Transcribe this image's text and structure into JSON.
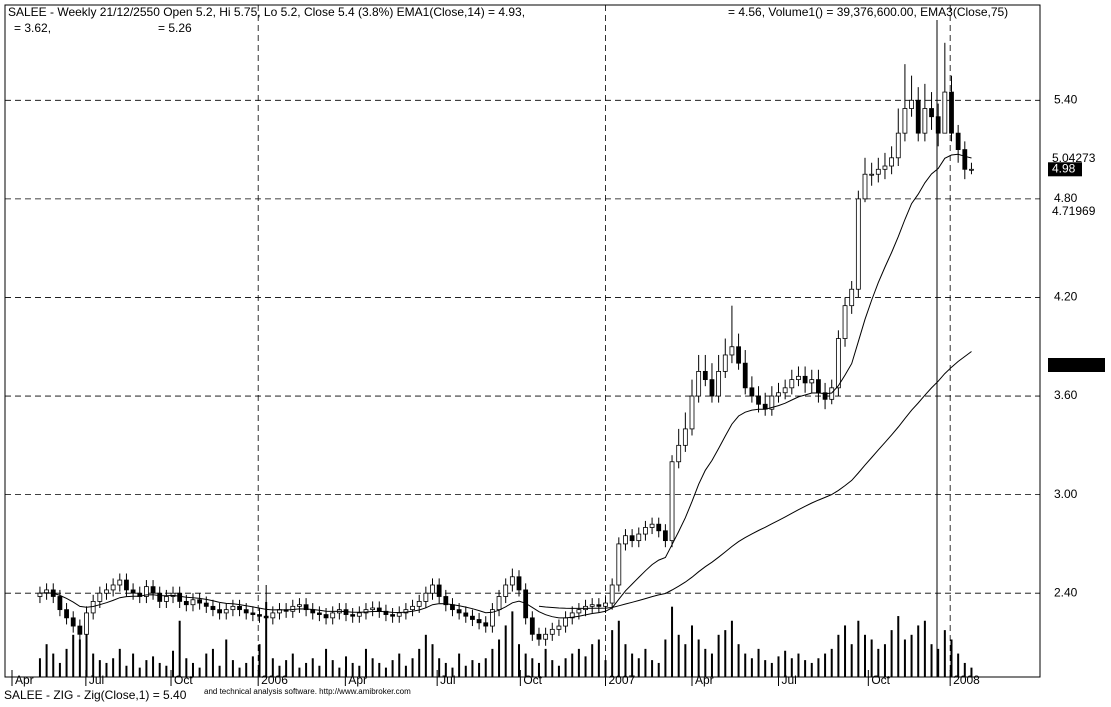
{
  "chart_data": {
    "type": "candlestick",
    "title": "SALEE - Weekly 21/12/2550 Open 5.2, Hi 5.75, Lo 5.2, Close 5.4 (3.8%) EMA1(Close,14) = 4.93,",
    "title_right": "= 4.56, Volume1() = 39,376,600.00, EMA3(Close,75)",
    "subtitle_left": "= 3.62,",
    "subtitle_mid": "= 5.26",
    "footer": "SALEE - ZIG - Zig(Close,1) = 5.40",
    "footer_small": "and technical analysis software. http://www.amibroker.com",
    "ema_periods": [
      14,
      75
    ],
    "ylim": [
      1.89,
      5.98
    ],
    "yticks": [
      {
        "value": 5.4,
        "label": "5.40"
      },
      {
        "value": 4.8,
        "label": "4.80"
      },
      {
        "value": 4.2,
        "label": "4.20"
      },
      {
        "value": 3.6,
        "label": "3.60"
      },
      {
        "value": 3.0,
        "label": "3.00"
      },
      {
        "value": 2.4,
        "label": "2.40"
      }
    ],
    "price_markers": [
      {
        "value": 5.04273,
        "label": "5.04273"
      },
      {
        "value": 4.98,
        "label": "4.98"
      },
      {
        "value": 4.71969,
        "label": "4.71969"
      }
    ],
    "xlim": [
      -4.2,
      149.4
    ],
    "xticks": [
      {
        "value": -4.2,
        "label": "Apr"
      },
      {
        "value": 6.9,
        "label": "Jul"
      },
      {
        "value": 19.7,
        "label": "Oct"
      },
      {
        "value": 32.8,
        "label": "2006"
      },
      {
        "value": 45.9,
        "label": "Apr"
      },
      {
        "value": 59.7,
        "label": "Jul"
      },
      {
        "value": 72.2,
        "label": "Oct"
      },
      {
        "value": 85,
        "label": "2007"
      },
      {
        "value": 98,
        "label": "Apr"
      },
      {
        "value": 111,
        "label": "Jul"
      },
      {
        "value": 124.5,
        "label": "Oct"
      },
      {
        "value": 136.8,
        "label": "2008"
      }
    ],
    "grid": true,
    "open": [
      2.38,
      2.4,
      2.42,
      2.38,
      2.3,
      2.25,
      2.2,
      2.15,
      2.28,
      2.35,
      2.4,
      2.42,
      2.45,
      2.48,
      2.42,
      2.4,
      2.38,
      2.44,
      2.4,
      2.35,
      2.38,
      2.4,
      2.35,
      2.33,
      2.36,
      2.34,
      2.32,
      2.3,
      2.28,
      2.3,
      2.32,
      2.3,
      2.28,
      2.27,
      2.26,
      2.25,
      2.28,
      2.3,
      2.29,
      2.32,
      2.33,
      2.3,
      2.28,
      2.27,
      2.25,
      2.28,
      2.3,
      2.27,
      2.26,
      2.28,
      2.3,
      2.31,
      2.29,
      2.27,
      2.26,
      2.28,
      2.3,
      2.32,
      2.35,
      2.4,
      2.45,
      2.38,
      2.33,
      2.3,
      2.28,
      2.26,
      2.24,
      2.22,
      2.2,
      2.3,
      2.38,
      2.45,
      2.5,
      2.42,
      2.25,
      2.15,
      2.12,
      2.15,
      2.18,
      2.2,
      2.25,
      2.28,
      2.3,
      2.32,
      2.33,
      2.32,
      2.34,
      2.45,
      2.7,
      2.75,
      2.72,
      2.76,
      2.8,
      2.82,
      2.78,
      2.72,
      3.2,
      3.3,
      3.4,
      3.6,
      3.75,
      3.7,
      3.6,
      3.75,
      3.85,
      3.9,
      3.8,
      3.65,
      3.6,
      3.55,
      3.52,
      3.6,
      3.62,
      3.65,
      3.7,
      3.72,
      3.68,
      3.7,
      3.62,
      3.58,
      3.65,
      3.95,
      4.15,
      4.25,
      4.8,
      4.95,
      4.95,
      4.98,
      5.0,
      5.05,
      5.2,
      5.35,
      5.4,
      5.2,
      5.35,
      5.3,
      5.2,
      5.45,
      5.2,
      5.1,
      4.98
    ],
    "high": [
      2.44,
      2.46,
      2.46,
      2.42,
      2.34,
      2.29,
      2.24,
      2.32,
      2.39,
      2.44,
      2.46,
      2.49,
      2.52,
      2.52,
      2.46,
      2.44,
      2.48,
      2.48,
      2.44,
      2.42,
      2.44,
      2.44,
      2.39,
      2.4,
      2.4,
      2.38,
      2.36,
      2.34,
      2.34,
      2.36,
      2.36,
      2.34,
      2.32,
      2.31,
      2.45,
      2.32,
      2.34,
      2.34,
      2.36,
      2.37,
      2.37,
      2.34,
      2.32,
      2.31,
      2.32,
      2.34,
      2.34,
      2.31,
      2.32,
      2.34,
      2.35,
      2.35,
      2.33,
      2.31,
      2.32,
      2.34,
      2.36,
      2.39,
      2.44,
      2.49,
      2.49,
      2.42,
      2.37,
      2.34,
      2.32,
      2.3,
      2.28,
      2.26,
      2.34,
      2.42,
      2.49,
      2.55,
      2.54,
      2.46,
      2.29,
      2.19,
      2.19,
      2.22,
      2.24,
      2.29,
      2.32,
      2.34,
      2.36,
      2.37,
      2.37,
      2.38,
      2.49,
      2.74,
      2.79,
      2.79,
      2.8,
      2.84,
      2.86,
      2.86,
      2.82,
      3.24,
      3.4,
      3.5,
      3.7,
      3.85,
      3.85,
      3.8,
      3.85,
      3.95,
      4.15,
      3.98,
      3.88,
      3.72,
      3.66,
      3.62,
      3.66,
      3.68,
      3.7,
      3.76,
      3.78,
      3.78,
      3.76,
      3.76,
      3.68,
      3.7,
      4.0,
      4.2,
      4.3,
      4.85,
      5.05,
      5.02,
      5.05,
      5.08,
      5.12,
      5.35,
      5.62,
      5.55,
      5.48,
      5.5,
      5.45,
      5.38,
      5.75,
      5.55,
      5.25,
      5.15,
      5.02
    ],
    "low": [
      2.34,
      2.36,
      2.34,
      2.26,
      2.21,
      2.16,
      2.11,
      2.11,
      2.24,
      2.31,
      2.36,
      2.38,
      2.41,
      2.38,
      2.36,
      2.34,
      2.34,
      2.36,
      2.31,
      2.31,
      2.34,
      2.31,
      2.29,
      2.29,
      2.3,
      2.28,
      2.26,
      2.24,
      2.24,
      2.26,
      2.26,
      2.24,
      2.23,
      2.22,
      2.21,
      2.21,
      2.24,
      2.25,
      2.25,
      2.28,
      2.26,
      2.24,
      2.23,
      2.21,
      2.21,
      2.24,
      2.23,
      2.22,
      2.22,
      2.24,
      2.26,
      2.25,
      2.23,
      2.22,
      2.22,
      2.24,
      2.26,
      2.28,
      2.31,
      2.36,
      2.34,
      2.29,
      2.26,
      2.24,
      2.22,
      2.2,
      2.18,
      2.16,
      2.16,
      2.26,
      2.34,
      2.41,
      2.38,
      2.21,
      2.11,
      2.08,
      2.08,
      2.11,
      2.14,
      2.16,
      2.21,
      2.24,
      2.26,
      2.28,
      2.28,
      2.28,
      2.3,
      2.41,
      2.66,
      2.68,
      2.68,
      2.72,
      2.76,
      2.74,
      2.68,
      2.68,
      3.16,
      3.26,
      3.36,
      3.56,
      3.66,
      3.56,
      3.56,
      3.71,
      3.8,
      3.76,
      3.61,
      3.56,
      3.5,
      3.48,
      3.48,
      3.56,
      3.58,
      3.61,
      3.66,
      3.62,
      3.62,
      3.56,
      3.52,
      3.55,
      3.6,
      3.9,
      4.1,
      4.2,
      4.78,
      4.88,
      4.9,
      4.92,
      4.95,
      5.0,
      5.15,
      5.3,
      5.15,
      5.15,
      5.22,
      5.12,
      5.2,
      5.15,
      5.02,
      4.92,
      4.95
    ],
    "close": [
      2.4,
      2.42,
      2.38,
      2.3,
      2.25,
      2.2,
      2.15,
      2.28,
      2.35,
      2.4,
      2.42,
      2.45,
      2.48,
      2.42,
      2.4,
      2.38,
      2.44,
      2.4,
      2.35,
      2.38,
      2.4,
      2.35,
      2.33,
      2.36,
      2.34,
      2.32,
      2.3,
      2.28,
      2.3,
      2.32,
      2.3,
      2.28,
      2.27,
      2.26,
      2.25,
      2.28,
      2.3,
      2.29,
      2.32,
      2.33,
      2.3,
      2.28,
      2.27,
      2.25,
      2.28,
      2.3,
      2.27,
      2.26,
      2.28,
      2.3,
      2.31,
      2.29,
      2.27,
      2.26,
      2.28,
      2.3,
      2.32,
      2.35,
      2.4,
      2.45,
      2.38,
      2.33,
      2.3,
      2.28,
      2.26,
      2.24,
      2.22,
      2.2,
      2.3,
      2.38,
      2.45,
      2.5,
      2.42,
      2.25,
      2.15,
      2.12,
      2.15,
      2.18,
      2.2,
      2.25,
      2.28,
      2.3,
      2.32,
      2.33,
      2.32,
      2.34,
      2.45,
      2.7,
      2.75,
      2.72,
      2.76,
      2.8,
      2.82,
      2.78,
      2.72,
      3.2,
      3.3,
      3.4,
      3.6,
      3.75,
      3.7,
      3.6,
      3.75,
      3.85,
      3.9,
      3.8,
      3.65,
      3.6,
      3.55,
      3.52,
      3.6,
      3.62,
      3.65,
      3.7,
      3.72,
      3.68,
      3.7,
      3.62,
      3.58,
      3.65,
      3.95,
      4.15,
      4.25,
      4.8,
      4.95,
      4.95,
      4.98,
      5.0,
      5.05,
      5.2,
      5.35,
      5.4,
      5.2,
      5.35,
      5.3,
      5.2,
      5.45,
      5.2,
      5.1,
      4.98,
      4.98
    ],
    "volume": [
      20,
      35,
      25,
      15,
      30,
      45,
      40,
      60,
      25,
      18,
      15,
      20,
      30,
      12,
      25,
      10,
      18,
      22,
      15,
      12,
      28,
      60,
      20,
      15,
      10,
      25,
      30,
      12,
      40,
      18,
      10,
      15,
      22,
      35,
      80,
      20,
      12,
      18,
      25,
      10,
      15,
      20,
      12,
      30,
      18,
      10,
      22,
      15,
      12,
      30,
      20,
      15,
      10,
      18,
      25,
      12,
      20,
      30,
      45,
      35,
      20,
      15,
      10,
      25,
      12,
      18,
      15,
      20,
      30,
      40,
      55,
      70,
      35,
      25,
      20,
      15,
      30,
      18,
      12,
      20,
      25,
      30,
      22,
      35,
      40,
      18,
      50,
      60,
      35,
      25,
      20,
      30,
      18,
      15,
      40,
      75,
      45,
      35,
      55,
      40,
      30,
      25,
      45,
      50,
      60,
      35,
      25,
      20,
      30,
      18,
      15,
      22,
      28,
      20,
      25,
      18,
      15,
      20,
      25,
      30,
      45,
      55,
      35,
      60,
      45,
      40,
      30,
      35,
      50,
      65,
      40,
      45,
      55,
      60,
      35,
      30,
      50,
      40,
      25,
      15,
      10
    ]
  }
}
